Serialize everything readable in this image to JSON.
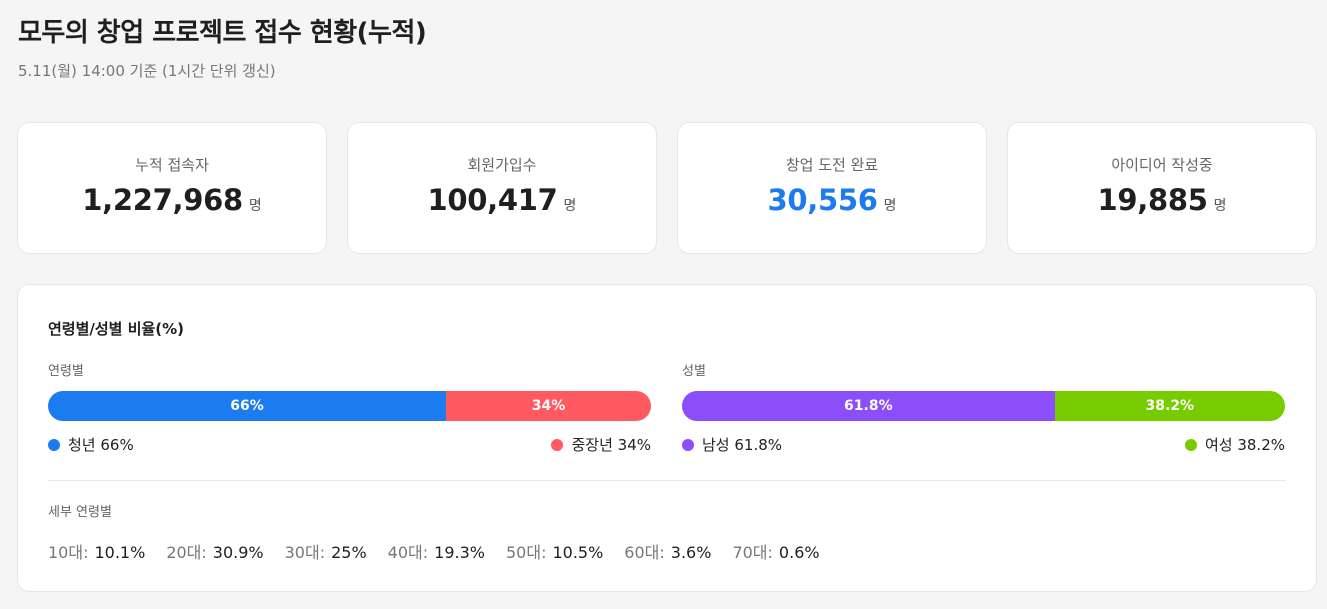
{
  "header": {
    "title": "모두의 창업 프로젝트 접수 현황(누적)",
    "subtitle": "5.11(월) 14:00 기준 (1시간 단위 갱신)"
  },
  "stats": [
    {
      "label": "누적 접속자",
      "value": "1,227,968",
      "unit": "명"
    },
    {
      "label": "회원가입수",
      "value": "100,417",
      "unit": "명"
    },
    {
      "label": "창업 도전 완료",
      "value": "30,556",
      "unit": "명",
      "color": "#1b7bef"
    },
    {
      "label": "아이디어 작성중",
      "value": "19,885",
      "unit": "명"
    }
  ],
  "ratio": {
    "title": "연령별/성별 비율(%)",
    "age": {
      "label": "연령별",
      "segments": [
        {
          "value": 66,
          "label": "66%",
          "color": "#1b7bef",
          "legend": "청년 66%"
        },
        {
          "value": 34,
          "label": "34%",
          "color": "#ff5a5f",
          "legend": "중장년 34%"
        }
      ]
    },
    "gender": {
      "label": "성별",
      "segments": [
        {
          "value": 61.8,
          "label": "61.8%",
          "color": "#8c4dfb",
          "legend": "남성 61.8%"
        },
        {
          "value": 38.2,
          "label": "38.2%",
          "color": "#77cc00",
          "legend": "여성 38.2%"
        }
      ]
    },
    "detail": {
      "label": "세부 연령별",
      "items": [
        {
          "key": "10대:",
          "value": "10.1%"
        },
        {
          "key": "20대:",
          "value": "30.9%"
        },
        {
          "key": "30대:",
          "value": "25%"
        },
        {
          "key": "40대:",
          "value": "19.3%"
        },
        {
          "key": "50대:",
          "value": "10.5%"
        },
        {
          "key": "60대:",
          "value": "3.6%"
        },
        {
          "key": "70대:",
          "value": "0.6%"
        }
      ]
    }
  }
}
